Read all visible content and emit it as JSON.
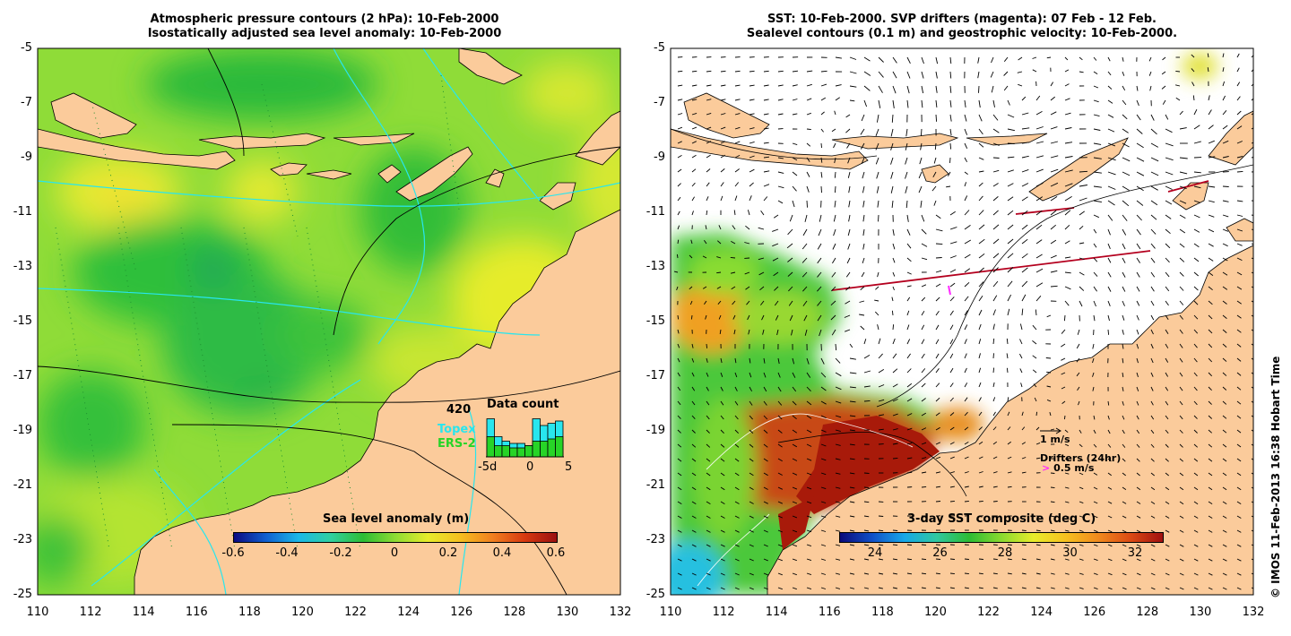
{
  "left_panel": {
    "title_line1": "Atmospheric pressure contours (2 hPa): 10-Feb-2000",
    "title_line2": "Isostatically adjusted sea level anomaly: 10-Feb-2000",
    "colorbar": {
      "label": "Sea level anomaly (m)",
      "ticks": [
        "-0.6",
        "-0.4",
        "-0.2",
        "0",
        "0.2",
        "0.4",
        "0.6"
      ]
    },
    "data_count": {
      "title": "Data count",
      "max_label": "420",
      "topex_label": "Topex",
      "ers_label": "ERS-2",
      "x_labels": [
        "-5d",
        "0",
        "5"
      ],
      "topex_fraction": [
        0.85,
        0.45,
        0.35,
        0.3,
        0.3,
        0.25,
        0.85,
        0.7,
        0.75,
        0.8
      ],
      "ers_fraction": [
        0.45,
        0.25,
        0.25,
        0.2,
        0.2,
        0.25,
        0.35,
        0.35,
        0.4,
        0.45
      ]
    }
  },
  "right_panel": {
    "title_line1": "SST: 10-Feb-2000. SVP drifters (magenta): 07 Feb - 12 Feb.",
    "title_line2": "Sealevel contours (0.1 m) and geostrophic velocity: 10-Feb-2000.",
    "colorbar": {
      "label": "3-day SST composite (deg C)",
      "ticks": [
        "24",
        "26",
        "28",
        "30",
        "32"
      ]
    },
    "velocity_key": "1 m/s",
    "drifter_key_title": "Drifters (24hr)",
    "drifter_key_speed": "0.5 m/s"
  },
  "axes": {
    "y_ticks": [
      "-5",
      "-7",
      "-9",
      "-11",
      "-13",
      "-15",
      "-17",
      "-19",
      "-21",
      "-23",
      "-25"
    ],
    "x_ticks": [
      "110",
      "112",
      "114",
      "116",
      "118",
      "120",
      "122",
      "124",
      "126",
      "128",
      "130",
      "132"
    ]
  },
  "credit": "© IMOS 11-Feb-2013 16:38 Hobart Time",
  "colors": {
    "land": "#fbcb9b",
    "anomaly_green": "#8edc34",
    "anomaly_dark": "#2fbd35",
    "anomaly_yellow": "#e6ec2c",
    "topex": "#28e6ee",
    "ers": "#27d427",
    "drifter": "#ff2aff",
    "track": "#b4001e"
  }
}
